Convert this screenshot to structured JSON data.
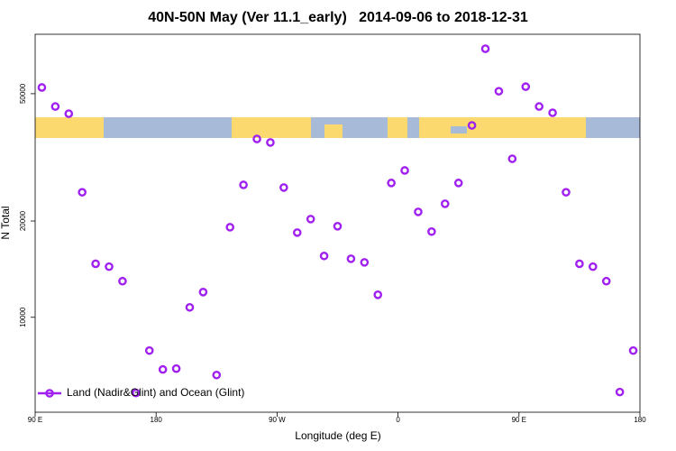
{
  "chart_data": {
    "type": "scatter",
    "title": "40N-50N May (Ver 11.1_early)   2014-09-06 to 2018-12-31",
    "xlabel": "Longitude (deg E)",
    "ylabel": "N Total",
    "x": [
      95,
      105,
      115,
      125,
      135,
      145,
      155,
      165,
      175,
      185,
      195,
      205,
      215,
      225,
      235,
      245,
      255,
      265,
      275,
      285,
      295,
      305,
      315,
      325,
      335,
      345,
      355,
      365,
      375,
      385,
      395,
      405,
      415,
      425,
      435,
      445,
      455,
      465,
      475,
      485,
      495,
      505,
      515,
      525,
      535
    ],
    "series": [
      {
        "name": "Land (Nadir&Glint) and Ocean (Glint)",
        "color": "#a020f0",
        "values": [
          52300,
          45600,
          43300,
          24600,
          14700,
          14400,
          12970,
          5800,
          7870,
          6870,
          6910,
          10740,
          11990,
          6600,
          19130,
          25940,
          36100,
          35200,
          25450,
          18400,
          20280,
          15550,
          19260,
          15240,
          14850,
          11760,
          26300,
          28780,
          21360,
          18530,
          22640,
          26300,
          39800,
          69100,
          50900,
          31300,
          52600,
          45600,
          43600,
          24600,
          14700,
          14400,
          12970,
          5840,
          7870
        ]
      }
    ],
    "xlim": [
      90,
      540
    ],
    "xticks": [
      {
        "value": 90,
        "label": "90 E"
      },
      {
        "value": 180,
        "label": "180"
      },
      {
        "value": 270,
        "label": "90 W"
      },
      {
        "value": 360,
        "label": "0"
      },
      {
        "value": 450,
        "label": "90 E"
      },
      {
        "value": 540,
        "label": "180"
      }
    ],
    "ylim": [
      5050,
      76700
    ],
    "yticks": [
      10000,
      20000,
      50000
    ],
    "ylog": true,
    "legend": "bottom-left"
  }
}
